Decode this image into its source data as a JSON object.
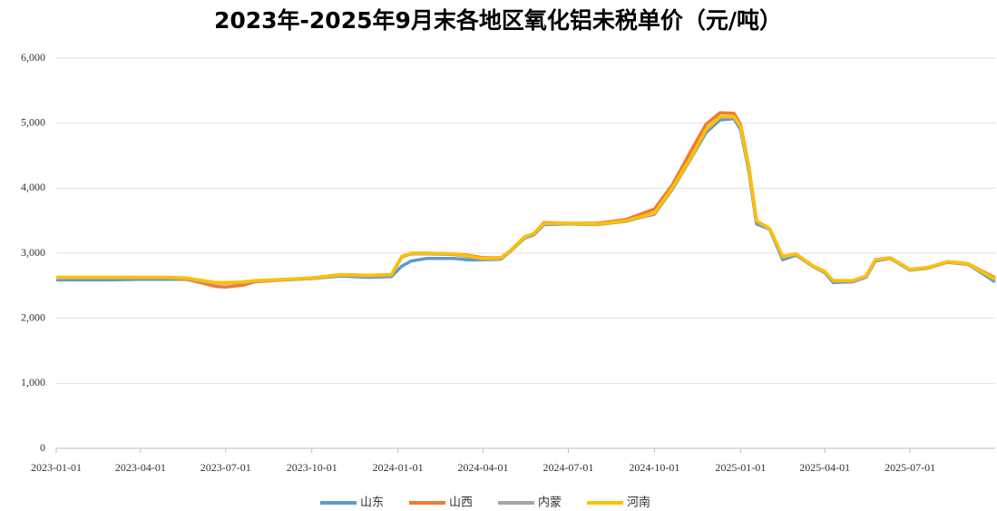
{
  "chart_data": {
    "type": "line",
    "title": "2023年-2025年9月末各地区氧化铝未税单价（元/吨）",
    "x": [
      "2023-01-01",
      "2023-02-01",
      "2023-03-01",
      "2023-04-01",
      "2023-05-01",
      "2023-05-20",
      "2023-06-01",
      "2023-06-20",
      "2023-07-01",
      "2023-07-20",
      "2023-08-01",
      "2023-09-01",
      "2023-10-01",
      "2023-11-01",
      "2023-12-01",
      "2023-12-25",
      "2024-01-05",
      "2024-01-15",
      "2024-02-01",
      "2024-03-01",
      "2024-03-15",
      "2024-04-01",
      "2024-04-20",
      "2024-05-01",
      "2024-05-15",
      "2024-05-25",
      "2024-06-05",
      "2024-07-01",
      "2024-08-01",
      "2024-09-01",
      "2024-10-01",
      "2024-10-20",
      "2024-11-10",
      "2024-11-25",
      "2024-12-10",
      "2024-12-25",
      "2025-01-01",
      "2025-01-10",
      "2025-01-18",
      "2025-02-01",
      "2025-02-15",
      "2025-03-01",
      "2025-03-20",
      "2025-04-01",
      "2025-04-10",
      "2025-05-01",
      "2025-05-15",
      "2025-05-25",
      "2025-06-10",
      "2025-07-01",
      "2025-07-20",
      "2025-08-10",
      "2025-09-01",
      "2025-09-30"
    ],
    "series": [
      {
        "name": "山东",
        "color": "#5b9bd5",
        "values": [
          2590,
          2590,
          2590,
          2600,
          2600,
          2600,
          2590,
          2550,
          2550,
          2550,
          2570,
          2590,
          2610,
          2650,
          2630,
          2640,
          2800,
          2880,
          2920,
          2920,
          2900,
          2900,
          2910,
          3040,
          3230,
          3280,
          3440,
          3450,
          3450,
          3500,
          3600,
          3980,
          4480,
          4850,
          5050,
          5070,
          4900,
          4250,
          3450,
          3370,
          2900,
          2970,
          2790,
          2700,
          2550,
          2560,
          2630,
          2880,
          2920,
          2740,
          2770,
          2860,
          2830,
          2560
        ]
      },
      {
        "name": "山西",
        "color": "#ed7d31",
        "values": [
          2620,
          2620,
          2620,
          2620,
          2620,
          2600,
          2560,
          2490,
          2480,
          2510,
          2560,
          2590,
          2620,
          2670,
          2660,
          2670,
          2950,
          3000,
          3000,
          2990,
          2970,
          2930,
          2930,
          3050,
          3250,
          3300,
          3470,
          3460,
          3460,
          3520,
          3680,
          4050,
          4600,
          4980,
          5160,
          5150,
          4980,
          4320,
          3500,
          3380,
          2950,
          2990,
          2800,
          2720,
          2570,
          2580,
          2650,
          2900,
          2930,
          2750,
          2780,
          2870,
          2840,
          2620
        ]
      },
      {
        "name": "内蒙",
        "color": "#a5a5a5",
        "values": [
          2620,
          2620,
          2620,
          2620,
          2620,
          2610,
          2580,
          2540,
          2540,
          2550,
          2570,
          2590,
          2610,
          2660,
          2650,
          2660,
          2940,
          2990,
          2990,
          2980,
          2950,
          2910,
          2920,
          3040,
          3240,
          3290,
          3450,
          3450,
          3440,
          3490,
          3610,
          3990,
          4490,
          4890,
          5090,
          5090,
          4940,
          4290,
          3490,
          3370,
          2940,
          2980,
          2790,
          2710,
          2570,
          2570,
          2640,
          2890,
          2920,
          2740,
          2770,
          2860,
          2830,
          2590
        ]
      },
      {
        "name": "河南",
        "color": "#ffc000",
        "values": [
          2630,
          2630,
          2630,
          2630,
          2630,
          2620,
          2590,
          2550,
          2550,
          2560,
          2580,
          2600,
          2620,
          2670,
          2660,
          2670,
          2950,
          3000,
          3000,
          2990,
          2960,
          2920,
          2930,
          3050,
          3250,
          3300,
          3460,
          3460,
          3450,
          3500,
          3620,
          4000,
          4500,
          4900,
          5100,
          5100,
          4950,
          4300,
          3500,
          3380,
          2950,
          2990,
          2800,
          2720,
          2580,
          2580,
          2650,
          2900,
          2930,
          2750,
          2780,
          2870,
          2840,
          2600
        ]
      }
    ],
    "xlim": [
      "2023-01-01",
      "2025-09-30"
    ],
    "xticks": [
      "2023-01-01",
      "2023-04-01",
      "2023-07-01",
      "2023-10-01",
      "2024-01-01",
      "2024-04-01",
      "2024-07-01",
      "2024-10-01",
      "2025-01-01",
      "2025-04-01",
      "2025-07-01"
    ],
    "ylim": [
      0,
      6000
    ],
    "yticks": [
      0,
      {
        "value": 1000,
        "label": "1,000"
      },
      {
        "value": 2000,
        "label": "2,000"
      },
      {
        "value": 3000,
        "label": "3,000"
      },
      {
        "value": 4000,
        "label": "4,000"
      },
      {
        "value": 5000,
        "label": "5,000"
      },
      {
        "value": 6000,
        "label": "6,000"
      }
    ],
    "grid": true,
    "legend": "bottom"
  }
}
